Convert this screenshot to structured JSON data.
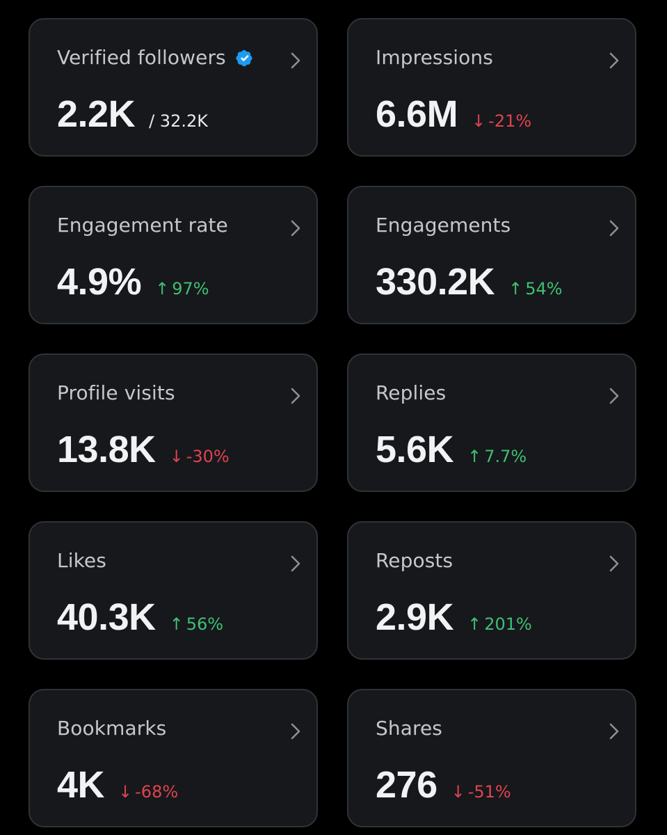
{
  "colors": {
    "background": "#000000",
    "card": "#16181c",
    "card_border": "#2f3336",
    "label": "#c4c8cc",
    "value": "#f1f2f3",
    "up": "#3fbf74",
    "down": "#e0434e",
    "verified": "#1d9bf0"
  },
  "cards": [
    {
      "label": "Verified followers",
      "value": "2.2K",
      "sub": "/ 32.2K",
      "icon": "verified-badge-icon"
    },
    {
      "label": "Impressions",
      "value": "6.6M",
      "delta": {
        "direction": "down",
        "arrow": "↓",
        "text": "-21%"
      }
    },
    {
      "label": "Engagement rate",
      "value": "4.9%",
      "delta": {
        "direction": "up",
        "arrow": "↑",
        "text": "97%"
      }
    },
    {
      "label": "Engagements",
      "value": "330.2K",
      "delta": {
        "direction": "up",
        "arrow": "↑",
        "text": "54%"
      }
    },
    {
      "label": "Profile visits",
      "value": "13.8K",
      "delta": {
        "direction": "down",
        "arrow": "↓",
        "text": "-30%"
      }
    },
    {
      "label": "Replies",
      "value": "5.6K",
      "delta": {
        "direction": "up",
        "arrow": "↑",
        "text": "7.7%"
      }
    },
    {
      "label": "Likes",
      "value": "40.3K",
      "delta": {
        "direction": "up",
        "arrow": "↑",
        "text": "56%"
      }
    },
    {
      "label": "Reposts",
      "value": "2.9K",
      "delta": {
        "direction": "up",
        "arrow": "↑",
        "text": "201%"
      }
    },
    {
      "label": "Bookmarks",
      "value": "4K",
      "delta": {
        "direction": "down",
        "arrow": "↓",
        "text": "-68%"
      }
    },
    {
      "label": "Shares",
      "value": "276",
      "delta": {
        "direction": "down",
        "arrow": "↓",
        "text": "-51%"
      }
    }
  ]
}
